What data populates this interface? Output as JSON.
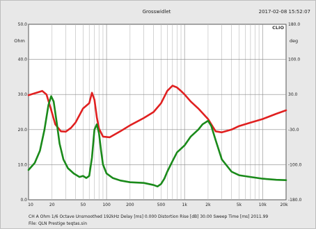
{
  "header": {
    "title": "Grosswidlet",
    "timestamp": "2017-02-08 15:52:07",
    "brand": "CLIO"
  },
  "left_axis": {
    "unit": "Ohm",
    "ticks": [
      {
        "label": "50.0",
        "v": 50
      },
      {
        "label": "40.0",
        "v": 40
      },
      {
        "label": "30.0",
        "v": 30
      },
      {
        "label": "20.0",
        "v": 20
      },
      {
        "label": "10.0",
        "v": 10
      },
      {
        "label": "0.0",
        "v": 0
      }
    ]
  },
  "right_axis": {
    "unit": "deg",
    "ticks": [
      {
        "label": "180.0",
        "v": 50
      },
      {
        "label": "100.0",
        "v": 40
      },
      {
        "label": "30.0",
        "v": 30
      },
      {
        "label": "-30.0",
        "v": 20
      },
      {
        "label": "-100.0",
        "v": 10
      },
      {
        "label": "-180.0",
        "v": 0
      }
    ]
  },
  "x_axis": {
    "ticks": [
      {
        "label": "10",
        "f": 10
      },
      {
        "label": "20",
        "f": 20
      },
      {
        "label": "50",
        "f": 50
      },
      {
        "label": "100",
        "f": 100
      },
      {
        "label": "200",
        "f": 200
      },
      {
        "label": "500",
        "f": 500
      },
      {
        "label": "1k",
        "f": 1000
      },
      {
        "label": "2k",
        "f": 2000
      },
      {
        "label": "5k",
        "f": 5000
      },
      {
        "label": "10k",
        "f": 10000
      },
      {
        "label": "20k",
        "f": 20000
      }
    ]
  },
  "footer": {
    "settings_line": "CH A  Ohm   1/6 Octave   Unsmoothed   192kHz   Delay [ms] 0.000   Distortion Rise [dB] 30.00   Sweep Time [ms] 2011.99",
    "file_line": "File: QLN Prestige teqtas.sin"
  },
  "chart_data": {
    "type": "line",
    "xscale": "log",
    "xlim": [
      10,
      20000
    ],
    "ylim": [
      0,
      50
    ],
    "y2lim": [
      -180,
      180
    ],
    "ylabel": "Ohm",
    "y2label": "deg",
    "grid": true,
    "series": [
      {
        "color": "#e02020",
        "x": [
          10,
          15,
          17,
          19,
          22,
          26,
          30,
          35,
          40,
          50,
          60,
          65,
          70,
          75,
          80,
          90,
          110,
          150,
          200,
          300,
          400,
          500,
          600,
          700,
          800,
          900,
          1000,
          1200,
          1500,
          2000,
          2500,
          3000,
          4000,
          5000,
          7000,
          10000,
          15000,
          20000
        ],
        "y": [
          29.8,
          31.0,
          30.0,
          26.5,
          21.5,
          19.5,
          19.4,
          20.5,
          22.0,
          26.0,
          27.5,
          30.5,
          28.5,
          23.5,
          20.3,
          18.0,
          17.8,
          19.5,
          21.2,
          23.3,
          25.0,
          27.5,
          31.0,
          32.5,
          32.0,
          31.0,
          30.0,
          28.0,
          26.0,
          23.0,
          19.5,
          19.2,
          20.0,
          21.0,
          22.0,
          23.0,
          24.5,
          25.5
        ]
      },
      {
        "color": "#1a8a1a",
        "x": [
          10,
          12,
          14,
          16,
          18,
          19.5,
          21,
          23,
          25,
          28,
          32,
          38,
          45,
          50,
          55,
          60,
          65,
          70,
          75,
          80,
          85,
          90,
          100,
          120,
          150,
          200,
          300,
          400,
          450,
          500,
          550,
          600,
          700,
          800,
          1000,
          1200,
          1500,
          1700,
          2000,
          2200,
          2500,
          3000,
          4000,
          5000,
          7000,
          10000,
          15000,
          20000
        ],
        "y": [
          8.5,
          10.5,
          14.0,
          20.0,
          27.0,
          29.5,
          28.0,
          22.0,
          16.0,
          11.5,
          9.0,
          7.5,
          6.5,
          6.8,
          6.2,
          6.8,
          12.0,
          20.0,
          21.5,
          19.0,
          14.0,
          10.0,
          7.5,
          6.2,
          5.5,
          5.0,
          4.8,
          4.2,
          3.8,
          4.5,
          6.0,
          8.0,
          11.0,
          13.5,
          15.5,
          18.0,
          20.0,
          21.5,
          22.5,
          21.0,
          17.0,
          11.5,
          8.0,
          7.0,
          6.5,
          6.0,
          5.7,
          5.6
        ]
      }
    ]
  }
}
